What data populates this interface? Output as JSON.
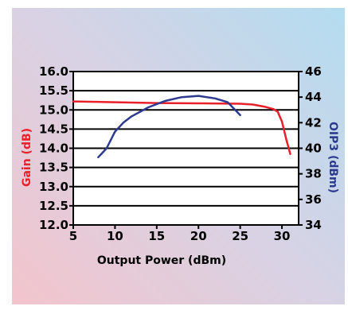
{
  "chart_data": {
    "type": "line",
    "title": "",
    "xlabel": "Output Power (dBm)",
    "ylabel_left": "Gain (dB)",
    "ylabel_right": "OIP3 (dBm)",
    "xlim": [
      5,
      32
    ],
    "ylim_left": [
      12.0,
      16.0
    ],
    "ylim_right": [
      34,
      46
    ],
    "x_ticks": [
      "5",
      "10",
      "15",
      "20",
      "25",
      "30"
    ],
    "y_left_ticks": [
      "12.0",
      "12.5",
      "13.0",
      "13.5",
      "14.0",
      "14.5",
      "15.0",
      "15.5",
      "16.0"
    ],
    "y_right_ticks": [
      "34",
      "36",
      "38",
      "40",
      "42",
      "44",
      "46"
    ],
    "grid": "horizontal",
    "colors": {
      "gain": "#e8202a",
      "oip3": "#2b3a8f",
      "left_label": "#e8202a",
      "right_label": "#2b3a8f"
    },
    "series": [
      {
        "axis": "left",
        "x": [
          5,
          10,
          15,
          20,
          25,
          26.5,
          28,
          29,
          29.5,
          30,
          30.5,
          31
        ],
        "y": [
          15.22,
          15.2,
          15.18,
          15.17,
          15.16,
          15.14,
          15.08,
          15.02,
          14.95,
          14.7,
          14.25,
          13.85
        ]
      },
      {
        "axis": "right",
        "x": [
          8,
          9,
          10,
          11,
          12,
          14,
          16,
          18,
          20,
          22,
          23.5,
          25
        ],
        "y": [
          39.3,
          40.0,
          41.3,
          42.0,
          42.5,
          43.2,
          43.7,
          44.0,
          44.1,
          43.9,
          43.6,
          42.6
        ]
      }
    ]
  }
}
